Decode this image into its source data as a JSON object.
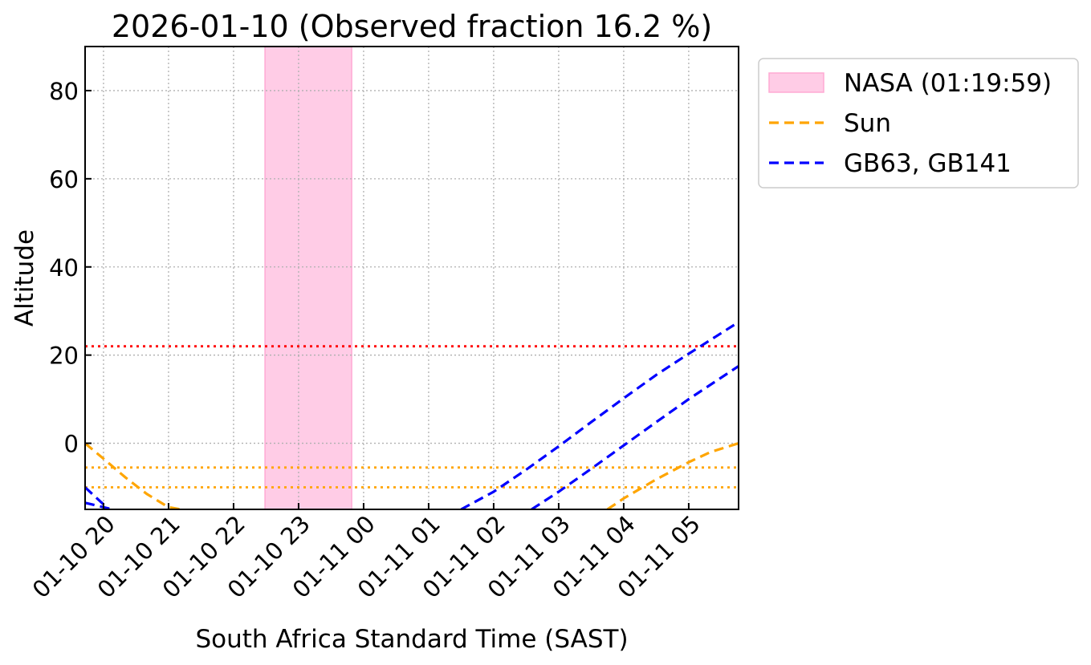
{
  "chart_data": {
    "type": "line",
    "title": "2026-01-10 (Observed fraction 16.2 %)",
    "xlabel": "South Africa Standard Time (SAST)",
    "ylabel": "Altitude",
    "xlim": [
      "2026-01-10 19:43",
      "2026-01-11 05:46"
    ],
    "ylim": [
      -15,
      90
    ],
    "yticks": [
      0,
      20,
      40,
      60,
      80
    ],
    "xticks": [
      {
        "t": "2026-01-10 20:00",
        "label": "01-10 20"
      },
      {
        "t": "2026-01-10 21:00",
        "label": "01-10 21"
      },
      {
        "t": "2026-01-10 22:00",
        "label": "01-10 22"
      },
      {
        "t": "2026-01-10 23:00",
        "label": "01-10 23"
      },
      {
        "t": "2026-01-11 00:00",
        "label": "01-11 00"
      },
      {
        "t": "2026-01-11 01:00",
        "label": "01-11 01"
      },
      {
        "t": "2026-01-11 02:00",
        "label": "01-11 02"
      },
      {
        "t": "2026-01-11 03:00",
        "label": "01-11 03"
      },
      {
        "t": "2026-01-11 04:00",
        "label": "01-11 04"
      },
      {
        "t": "2026-01-11 05:00",
        "label": "01-11 05"
      }
    ],
    "grid": true,
    "legend_position": "outside-right-top",
    "shaded_interval": {
      "name": "NASA (01:19:59)",
      "start": "2026-01-10 22:29",
      "end": "2026-01-10 23:49",
      "color": "#ffcce6",
      "edge_color": "#ffaad4"
    },
    "hlines": [
      {
        "y": 22,
        "color": "#ff0000",
        "style": "dotted"
      },
      {
        "y": -5.5,
        "color": "#ffa500",
        "style": "dotted"
      },
      {
        "y": -10,
        "color": "#ffa500",
        "style": "dotted"
      }
    ],
    "series": [
      {
        "name": "Sun",
        "color": "#ffa500",
        "style": "dashed",
        "segments": [
          {
            "x": [
              "2026-01-10 19:43",
              "2026-01-10 20:00",
              "2026-01-10 20:20",
              "2026-01-10 20:40",
              "2026-01-10 21:00",
              "2026-01-10 21:11"
            ],
            "y": [
              0,
              -3.5,
              -7.7,
              -11.5,
              -14.5,
              -15
            ]
          },
          {
            "x": [
              "2026-01-11 03:45",
              "2026-01-11 04:00",
              "2026-01-11 04:30",
              "2026-01-11 05:00",
              "2026-01-11 05:20",
              "2026-01-11 05:46"
            ],
            "y": [
              -15,
              -12.5,
              -8.2,
              -4.3,
              -2,
              0
            ]
          }
        ]
      },
      {
        "name": "GB63, GB141",
        "color": "#0000ff",
        "style": "dashed",
        "segments": [
          {
            "x": [
              "2026-01-10 19:43",
              "2026-01-10 20:05"
            ],
            "y": [
              -10,
              -15
            ]
          },
          {
            "x": [
              "2026-01-11 01:30",
              "2026-01-11 02:00",
              "2026-01-11 02:30",
              "2026-01-11 03:00",
              "2026-01-11 03:30",
              "2026-01-11 04:00",
              "2026-01-11 04:30",
              "2026-01-11 05:00",
              "2026-01-11 05:46"
            ],
            "y": [
              -15,
              -11,
              -6,
              -0.7,
              4.8,
              10.2,
              15.5,
              20.3,
              27.5
            ]
          }
        ]
      },
      {
        "name": "",
        "color": "#0000ff",
        "style": "dashed",
        "segments": [
          {
            "x": [
              "2026-01-10 19:43",
              "2026-01-10 20:00",
              "2026-01-10 20:17"
            ],
            "y": [
              -13.5,
              -14.5,
              -15.5
            ]
          },
          {
            "x": [
              "2026-01-11 02:35",
              "2026-01-11 03:00",
              "2026-01-11 03:30",
              "2026-01-11 04:00",
              "2026-01-11 04:30",
              "2026-01-11 05:00",
              "2026-01-11 05:46"
            ],
            "y": [
              -15,
              -11,
              -5.8,
              -0.5,
              4.8,
              10,
              17.5
            ]
          }
        ]
      }
    ]
  }
}
